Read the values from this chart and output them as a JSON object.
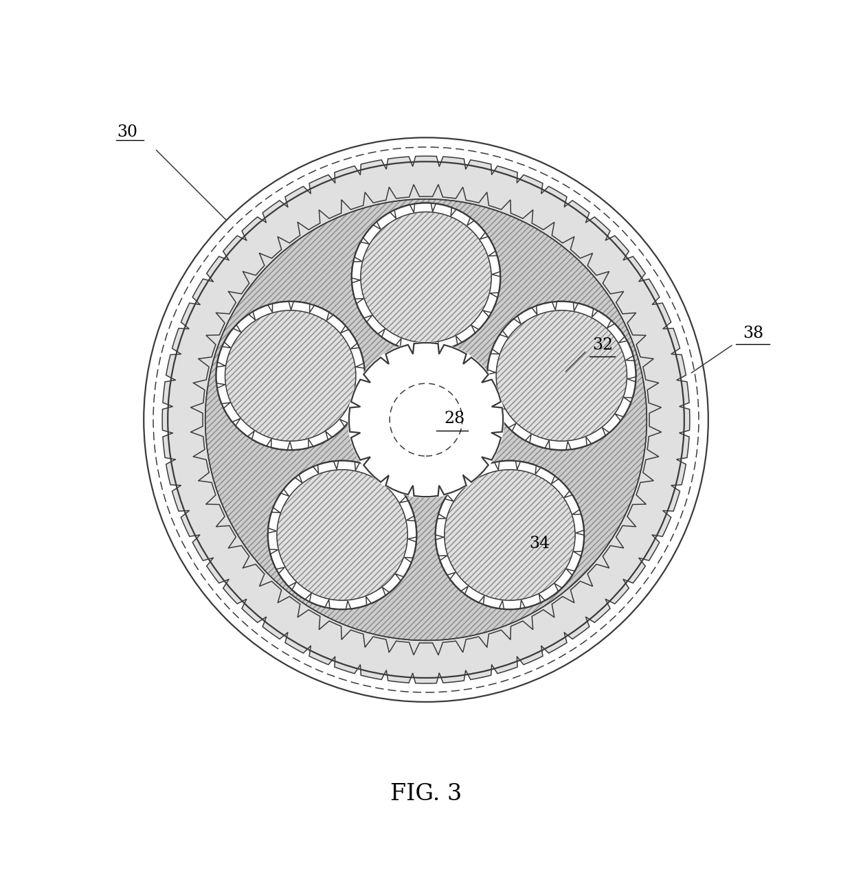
{
  "bg_color": "#ffffff",
  "line_color": "#3a3a3a",
  "fig_caption": "FIG. 3",
  "outer_circle_r": 5.05,
  "outer_circle2_r": 4.88,
  "ring_gear_outer_r": 4.62,
  "ring_gear_inner_r": 4.15,
  "ring_gear_n_teeth": 60,
  "carrier_outer_r": 3.95,
  "carrier_inner_r": 0.65,
  "sun_r": 1.28,
  "planet_orbit_r": 2.55,
  "planet_r": 1.25,
  "planet_n_teeth": 22,
  "sun_n_teeth": 16,
  "n_planets": 5,
  "planet_angles_deg": [
    90,
    162,
    234,
    306,
    18
  ],
  "hatch_carrier": "////",
  "hatch_planet": "////",
  "label_fontsize": 17,
  "caption_fontsize": 24
}
